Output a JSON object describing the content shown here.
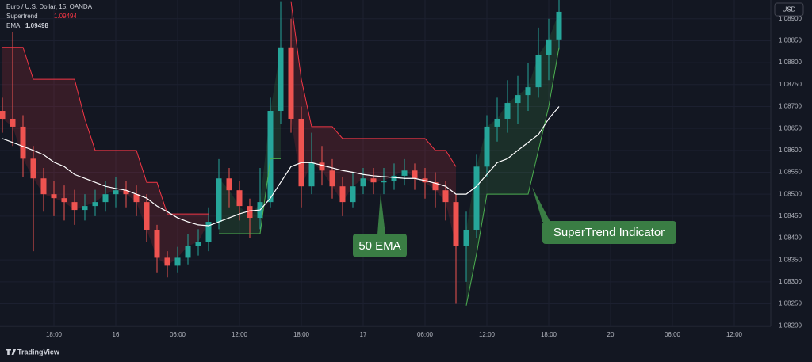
{
  "chart_data": {
    "type": "candlestick",
    "title": "Euro / U.S. Dollar, 15, OANDA",
    "currency": "USD",
    "watermark": "TradingView",
    "up_color": "#26a69a",
    "down_color": "#ef5350",
    "grid": true,
    "categories": [
      null,
      null,
      null,
      null,
      null,
      "18:00",
      null,
      null,
      null,
      null,
      null,
      "16",
      null,
      null,
      null,
      null,
      null,
      "06:00",
      null,
      null,
      null,
      null,
      null,
      "12:00",
      null,
      null,
      null,
      null,
      null,
      "18:00",
      null,
      null,
      null,
      null,
      null,
      "17",
      null,
      null,
      null,
      null,
      null,
      "06:00",
      null,
      null,
      null,
      null,
      null,
      "12:00",
      null,
      null,
      null,
      null,
      null,
      "18:00",
      null,
      null,
      null,
      null,
      null,
      "20",
      null,
      null,
      null,
      null,
      null,
      "06:00",
      null,
      null,
      null,
      null,
      null,
      "12:00"
    ],
    "open": [
      1.0869,
      1.08672,
      1.08654,
      1.08581,
      1.08536,
      1.085,
      1.08491,
      1.08482,
      1.08464,
      1.08473,
      1.08482,
      1.085,
      1.08509,
      1.085,
      1.08482,
      1.08419,
      1.08355,
      1.08337,
      1.08355,
      1.08382,
      1.08391,
      1.08437,
      1.08536,
      1.08509,
      1.08473,
      1.08446,
      1.08482,
      1.0869,
      1.08835,
      1.08672,
      1.08518,
      1.08572,
      1.08554,
      1.08518,
      1.08482,
      1.08518,
      1.08536,
      1.08527,
      1.08531,
      1.08542,
      1.08554,
      1.08536,
      1.08527,
      1.08509,
      1.08482,
      1.08382,
      1.08419,
      1.08563,
      1.08654,
      1.08672,
      1.08708,
      1.08726,
      1.08744,
      1.08817,
      1.08853,
      null,
      null,
      null,
      null,
      null,
      null,
      null,
      null,
      null,
      null,
      null,
      null,
      null,
      null,
      null,
      null,
      null
    ],
    "high": [
      1.0872,
      1.0887,
      1.0868,
      1.0861,
      1.0856,
      1.0853,
      1.0852,
      1.0851,
      1.085,
      1.0851,
      1.0853,
      1.0854,
      1.0853,
      1.0852,
      1.085,
      1.0843,
      1.0837,
      1.0838,
      1.0841,
      1.0842,
      1.0847,
      1.0858,
      1.0856,
      1.0853,
      1.0849,
      1.0856,
      1.0872,
      1.0894,
      1.089,
      1.087,
      1.0864,
      1.0861,
      1.0858,
      1.0854,
      1.0855,
      1.0856,
      1.0856,
      1.0856,
      1.0857,
      1.0858,
      1.0857,
      1.0856,
      1.0855,
      1.0853,
      1.085,
      1.0846,
      1.0859,
      1.0868,
      1.0872,
      1.0876,
      1.0877,
      1.088,
      1.0888,
      1.089,
      1.0896,
      null,
      null,
      null,
      null,
      null,
      null,
      null,
      null,
      null,
      null,
      null,
      null,
      null,
      null,
      null,
      null,
      null
    ],
    "low": [
      1.0864,
      1.0861,
      1.0854,
      1.0837,
      1.0846,
      1.0845,
      1.0844,
      1.0843,
      1.0844,
      1.0845,
      1.0846,
      1.0847,
      1.0847,
      1.0845,
      1.0839,
      1.0832,
      1.0831,
      1.0832,
      1.0834,
      1.0836,
      1.0837,
      1.0842,
      1.0847,
      1.0844,
      1.084,
      1.0842,
      1.0847,
      1.0866,
      1.0864,
      1.0847,
      1.085,
      1.0852,
      1.0849,
      1.0845,
      1.0847,
      1.085,
      1.085,
      1.085,
      1.0851,
      1.0852,
      1.0851,
      1.0849,
      1.0847,
      1.0844,
      1.0825,
      1.083,
      1.084,
      1.0854,
      1.0862,
      1.0864,
      1.0866,
      1.0869,
      1.0872,
      1.0876,
      1.0883,
      null,
      null,
      null,
      null,
      null,
      null,
      null,
      null,
      null,
      null,
      null,
      null,
      null,
      null,
      null,
      null,
      null
    ],
    "close": [
      1.08672,
      1.08654,
      1.08581,
      1.08536,
      1.085,
      1.08491,
      1.08482,
      1.08464,
      1.08473,
      1.08482,
      1.085,
      1.08509,
      1.085,
      1.08482,
      1.08419,
      1.08355,
      1.08337,
      1.08355,
      1.08382,
      1.08391,
      1.08437,
      1.08536,
      1.08509,
      1.08473,
      1.08446,
      1.08482,
      1.0869,
      1.08835,
      1.08672,
      1.08518,
      1.08572,
      1.08554,
      1.08518,
      1.08482,
      1.08518,
      1.08536,
      1.08527,
      1.08531,
      1.08542,
      1.08554,
      1.08536,
      1.08527,
      1.08509,
      1.08482,
      1.08382,
      1.08419,
      1.08563,
      1.08654,
      1.08672,
      1.08708,
      1.08726,
      1.08744,
      1.08817,
      1.08853,
      1.08916,
      null,
      null,
      null,
      null,
      null,
      null,
      null,
      null,
      null,
      null,
      null,
      null,
      null,
      null,
      null,
      null,
      null
    ],
    "series": [
      {
        "name": "Supertrend",
        "value": 1.09494,
        "color": "#f23645",
        "color_up": "#4caf50",
        "values": [
          1.08835,
          1.08835,
          1.08835,
          1.08762,
          1.08762,
          1.08762,
          1.08762,
          1.08762,
          1.08672,
          1.086,
          1.086,
          1.086,
          1.086,
          1.086,
          1.08527,
          1.08527,
          1.08455,
          1.08455,
          1.08455,
          1.08455,
          1.08455,
          null,
          null,
          null,
          null,
          null,
          null,
          null,
          1.0894,
          1.08762,
          1.08654,
          1.08654,
          1.08654,
          1.08627,
          1.08627,
          1.08627,
          1.08627,
          1.08627,
          1.08627,
          1.08627,
          1.08627,
          1.08627,
          1.086,
          1.086,
          1.08563,
          null,
          null,
          null,
          null,
          null,
          null,
          null,
          null,
          null,
          null,
          null,
          null,
          null,
          null,
          null,
          null,
          null,
          null,
          null,
          null,
          null,
          null,
          null,
          null,
          null,
          null,
          null
        ],
        "values_up": [
          null,
          null,
          null,
          null,
          null,
          null,
          null,
          null,
          null,
          null,
          null,
          null,
          null,
          null,
          null,
          null,
          null,
          null,
          null,
          null,
          null,
          1.0841,
          1.0841,
          1.0841,
          1.0841,
          1.0841,
          1.08581,
          1.08581,
          null,
          null,
          null,
          null,
          null,
          null,
          null,
          null,
          null,
          null,
          null,
          null,
          null,
          null,
          null,
          null,
          null,
          1.08246,
          1.08364,
          1.085,
          1.085,
          1.085,
          1.085,
          1.085,
          1.086,
          1.087,
          1.08835,
          null,
          null,
          null,
          null,
          null,
          null,
          null,
          null,
          null,
          null,
          null,
          null,
          null,
          null,
          null,
          null,
          null
        ]
      },
      {
        "name": "EMA",
        "value": 1.09498,
        "color": "#ffffff",
        "values": [
          1.08627,
          1.08618,
          1.08609,
          1.086,
          1.0859,
          1.08573,
          1.08563,
          1.08545,
          1.08536,
          1.08527,
          1.08518,
          1.08513,
          1.08509,
          1.085,
          1.08491,
          1.08473,
          1.0846,
          1.08446,
          1.08437,
          1.0843,
          1.08428,
          1.08437,
          1.08446,
          1.08455,
          1.08462,
          1.08464,
          1.08491,
          1.08527,
          1.08563,
          1.08572,
          1.08572,
          1.08566,
          1.0856,
          1.08554,
          1.0855,
          1.08545,
          1.08542,
          1.0854,
          1.08538,
          1.08536,
          1.08536,
          1.08531,
          1.08525,
          1.08518,
          1.085,
          1.085,
          1.08518,
          1.08545,
          1.08572,
          1.08581,
          1.086,
          1.08618,
          1.08636,
          1.08672,
          1.087,
          null,
          null,
          null,
          null,
          null,
          null,
          null,
          null,
          null,
          null,
          null,
          null,
          null,
          null,
          null,
          null,
          null
        ]
      }
    ],
    "annotations": [
      "50 EMA",
      "SuperTrend Indicator"
    ],
    "ylim": [
      1.08166,
      1.08943
    ],
    "yticks": [
      {
        "value": 1.082,
        "label": "1.08200"
      },
      {
        "value": 1.0825,
        "label": "1.08250"
      },
      {
        "value": 1.083,
        "label": "1.08300"
      },
      {
        "value": 1.0835,
        "label": "1.08350"
      },
      {
        "value": 1.084,
        "label": "1.08400"
      },
      {
        "value": 1.0845,
        "label": "1.08450"
      },
      {
        "value": 1.085,
        "label": "1.08500"
      },
      {
        "value": 1.0855,
        "label": "1.08550"
      },
      {
        "value": 1.086,
        "label": "1.08600"
      },
      {
        "value": 1.0865,
        "label": "1.08650"
      },
      {
        "value": 1.087,
        "label": "1.08700"
      },
      {
        "value": 1.0875,
        "label": "1.08750"
      },
      {
        "value": 1.088,
        "label": "1.08800"
      },
      {
        "value": 1.0885,
        "label": "1.08850"
      },
      {
        "value": 1.089,
        "label": "1.08900"
      }
    ]
  }
}
